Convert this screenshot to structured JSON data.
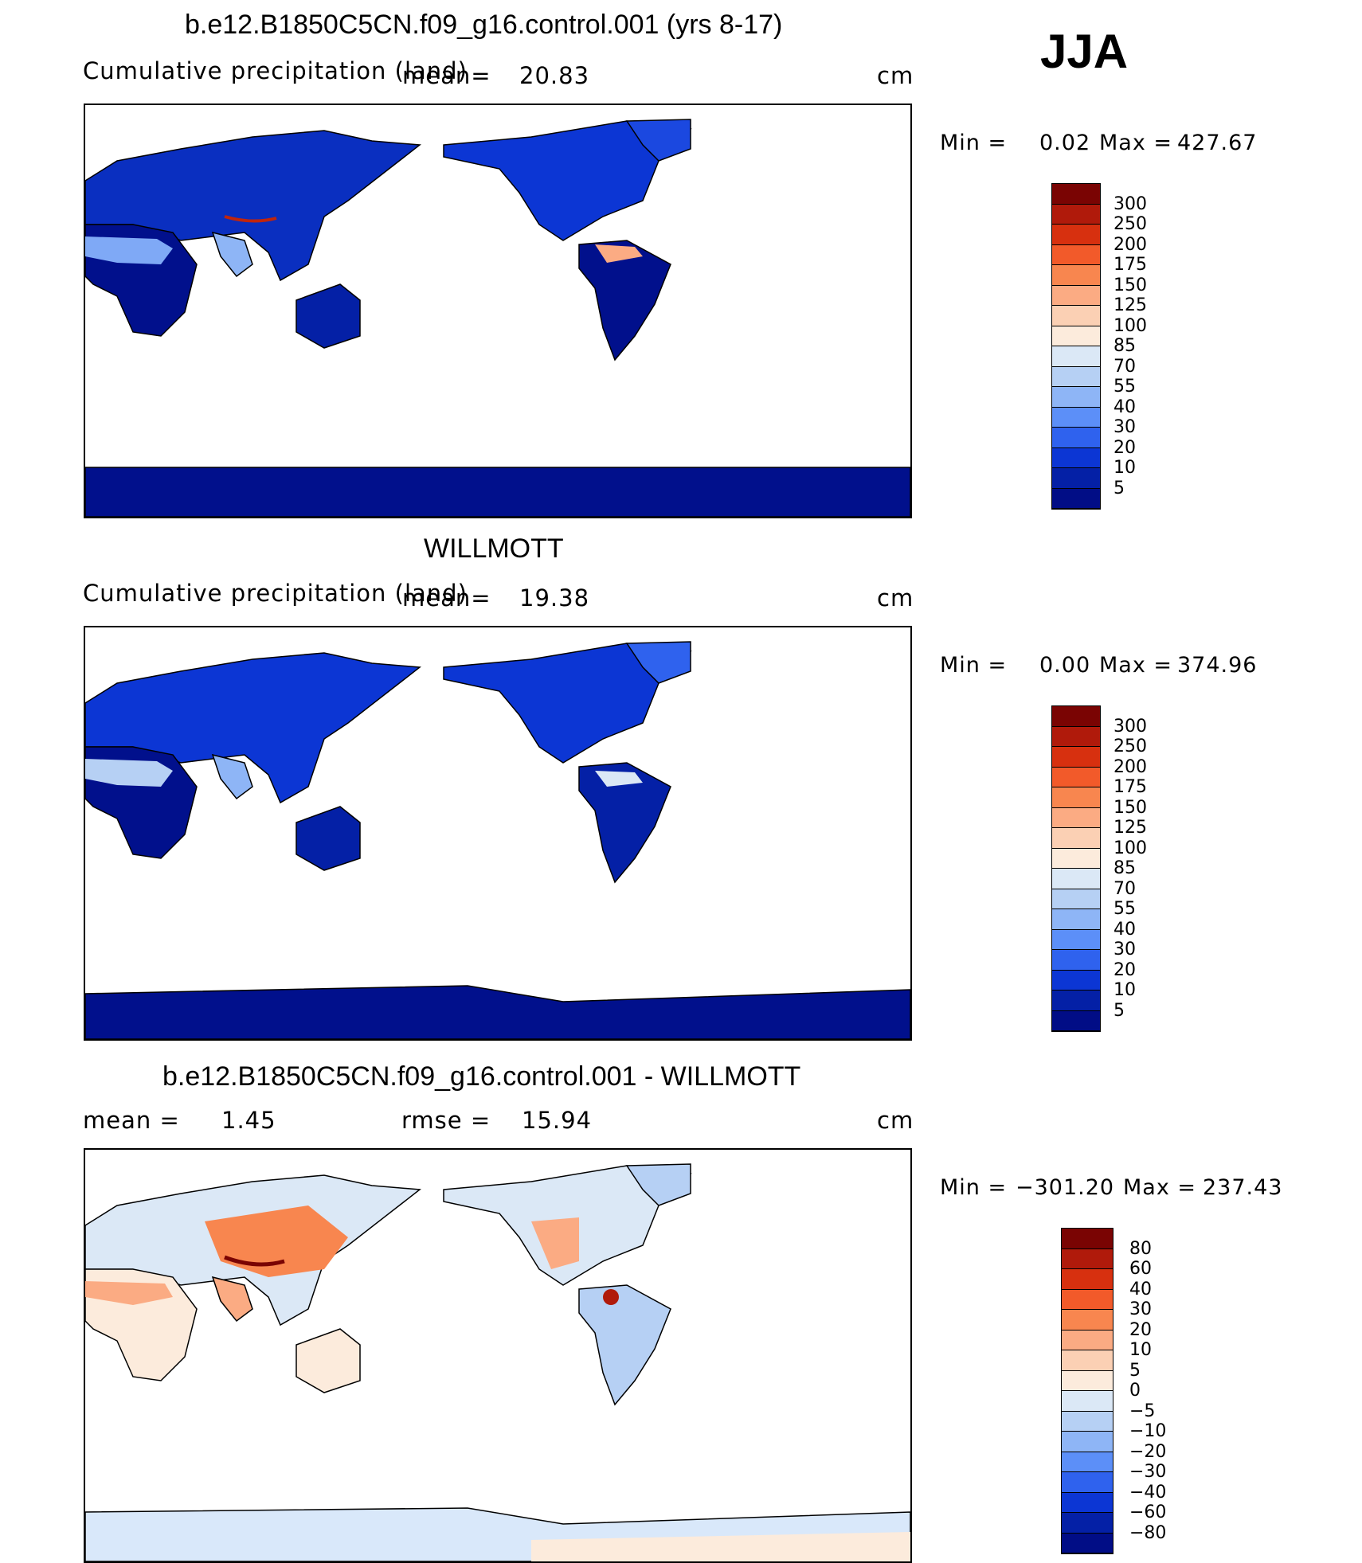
{
  "season": "JJA",
  "panels": [
    {
      "title": "b.e12.B1850C5CN.f09_g16.control.001 (yrs 8-17)",
      "subtitle_left": "Cumulative precipitation (land)",
      "mean_label": "mean=",
      "mean_value": "20.83",
      "units": "cm",
      "min_label": "Min =",
      "min_value": "0.02",
      "max_label": "Max =",
      "max_value": "427.67",
      "colorbar_labels": [
        "300",
        "250",
        "200",
        "175",
        "150",
        "125",
        "100",
        "85",
        "70",
        "55",
        "40",
        "30",
        "20",
        "10",
        "5"
      ]
    },
    {
      "title": "WILLMOTT",
      "subtitle_left": "Cumulative precipitation (land)",
      "mean_label": "mean=",
      "mean_value": "19.38",
      "units": "cm",
      "min_label": "Min =",
      "min_value": "0.00",
      "max_label": "Max =",
      "max_value": "374.96",
      "colorbar_labels": [
        "300",
        "250",
        "200",
        "175",
        "150",
        "125",
        "100",
        "85",
        "70",
        "55",
        "40",
        "30",
        "20",
        "10",
        "5"
      ]
    },
    {
      "title": "b.e12.B1850C5CN.f09_g16.control.001 - WILLMOTT",
      "mean_label": "mean =",
      "mean_value": "1.45",
      "rmse_label": "rmse =",
      "rmse_value": "15.94",
      "units": "cm",
      "min_label": "Min =",
      "min_value": "−301.20",
      "max_label": "Max =",
      "max_value": "237.43",
      "colorbar_labels": [
        "80",
        "60",
        "40",
        "30",
        "20",
        "10",
        "5",
        "0",
        "−5",
        "−10",
        "−20",
        "−30",
        "−40",
        "−60",
        "−80"
      ]
    }
  ],
  "colors": {
    "precip_scale": [
      "#7a0403",
      "#b01a0b",
      "#d7300f",
      "#f25a2a",
      "#f8864f",
      "#fbab83",
      "#fbd0b4",
      "#fcebdc",
      "#dbe8f6",
      "#b6d0f4",
      "#8eb5f6",
      "#5c8ff8",
      "#2f62ee",
      "#0c36d4",
      "#0420a6",
      "#010d86"
    ],
    "diff_scale": [
      "#7a0403",
      "#b01a0b",
      "#d7300f",
      "#f25a2a",
      "#f8864f",
      "#fbab83",
      "#fbd0b4",
      "#fcebdc",
      "#dbe8f6",
      "#b6d0f4",
      "#8eb5f6",
      "#5c8ff8",
      "#2f62ee",
      "#0c36d4",
      "#0420a6",
      "#010d86"
    ],
    "antarctica_model": "#01108c",
    "antarctica_diff": "#d9e8fa"
  }
}
